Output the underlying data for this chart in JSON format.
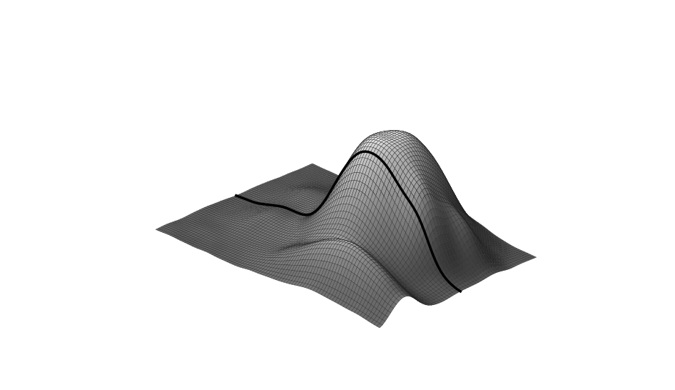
{
  "title": "",
  "background_color": "#ffffff",
  "edge_color": "#222222",
  "line_color": "#000000",
  "line_width": 2.5,
  "elev": 25,
  "azim": -135,
  "figsize": [
    9.46,
    5.46
  ],
  "dpi": 100,
  "edge_linewidth": 0.25,
  "cross_section_col": 30
}
